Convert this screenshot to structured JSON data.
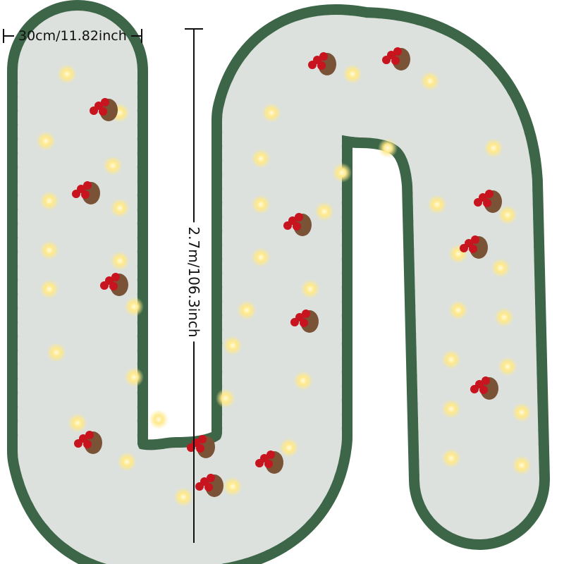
{
  "product": "flocked christmas garland with lights, pinecones and red berries",
  "dimensions": {
    "width_label": "30cm/11.82inch",
    "length_label": "2.7m/106.3inch"
  },
  "colors": {
    "foliage": "#2f5a3a",
    "snow": "#eef0ee",
    "lights": "#fff3b0",
    "berries": "#c8141e",
    "pinecones": "#7a5236"
  }
}
